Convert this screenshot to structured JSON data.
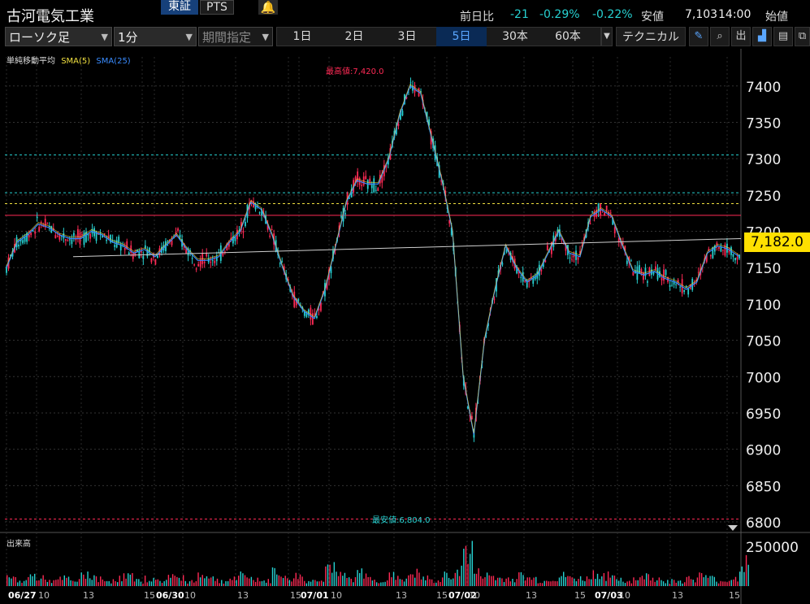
{
  "stock": {
    "name": "古河電気工業",
    "market": "東証",
    "alt_market": "PTS"
  },
  "quote": {
    "change_label": "前日比",
    "change": "-21",
    "change_pct": "-0.29%",
    "change_pct2": "-0.22%",
    "low_label": "安値",
    "low_value": "7,103",
    "time": "14:00",
    "open_label": "始値"
  },
  "toolbar": {
    "chart_type": "ローソク足",
    "interval": "1分",
    "period": "期間指定",
    "ranges": [
      "1日",
      "2日",
      "3日",
      "5日",
      "30本",
      "60本"
    ],
    "active_range": "5日",
    "technical": "テクニカル"
  },
  "indicator": {
    "label": "単純移動平均",
    "sma5": "SMA(5)",
    "sma25": "SMA(25)"
  },
  "annotations": {
    "high": "最高値:7,420.0",
    "low": "最安値:6,804.0"
  },
  "current_price": "7,182.0",
  "volume": {
    "label": "出来高",
    "axis_max": "250000"
  },
  "colors": {
    "up": "#ff2a55",
    "down": "#27d1d1",
    "sma5": "#f0e040",
    "sma25": "#3a8cff",
    "price_tag": "#ffe000",
    "active_tab": "#5aa6ff"
  },
  "chart_data": {
    "type": "line",
    "title": "",
    "y_ticks": [
      7400,
      7350,
      7300,
      7250,
      7200,
      7150,
      7100,
      7050,
      7000,
      6950,
      6900,
      6850,
      6800
    ],
    "ylim": [
      6790,
      7440
    ],
    "x_labels": [
      "06/27",
      "10",
      "13",
      "15",
      "06/30",
      "10",
      "13",
      "15",
      "07/01",
      "10",
      "13",
      "15",
      "07/02",
      "10",
      "13",
      "15",
      "07/03",
      "10",
      "13",
      "15"
    ],
    "series": [
      {
        "name": "SMA(25)",
        "values": [
          7150,
          7185,
          7195,
          7210,
          7205,
          7195,
          7190,
          7190,
          7200,
          7195,
          7185,
          7180,
          7170,
          7175,
          7165,
          7180,
          7195,
          7175,
          7160,
          7160,
          7165,
          7185,
          7200,
          7240,
          7230,
          7195,
          7150,
          7110,
          7090,
          7080,
          7120,
          7180,
          7240,
          7270,
          7265,
          7265,
          7300,
          7360,
          7400,
          7390,
          7330,
          7270,
          7200,
          7000,
          6920,
          7050,
          7120,
          7180,
          7150,
          7130,
          7140,
          7170,
          7200,
          7170,
          7165,
          7220,
          7230,
          7220,
          7180,
          7145,
          7140,
          7145,
          7135,
          7130,
          7120,
          7130,
          7170,
          7180,
          7175,
          7165
        ]
      }
    ],
    "volume_values": [
      3,
      2,
      4,
      3,
      2,
      3,
      2,
      5,
      3,
      2,
      3,
      4,
      2,
      3,
      2,
      4,
      3,
      2,
      5,
      3,
      2,
      3,
      4,
      3,
      2,
      6,
      3,
      4,
      2,
      3,
      8,
      4,
      3,
      5,
      3,
      2,
      4,
      3,
      5,
      3,
      2,
      4,
      6,
      14,
      5,
      4,
      3,
      3,
      4,
      3,
      2,
      3,
      4,
      3,
      3,
      5,
      4,
      3,
      2,
      3,
      4,
      3,
      2,
      2,
      3,
      4,
      3,
      2,
      3,
      9
    ],
    "volume_max": 250000,
    "reference_lines": [
      {
        "name": "ref-cyan-high",
        "value": 7305
      },
      {
        "name": "ref-cyan",
        "value": 7253
      },
      {
        "name": "ref-yellow",
        "value": 7238
      },
      {
        "name": "ref-red",
        "value": 7222
      },
      {
        "name": "ref-low",
        "value": 6804
      }
    ]
  }
}
